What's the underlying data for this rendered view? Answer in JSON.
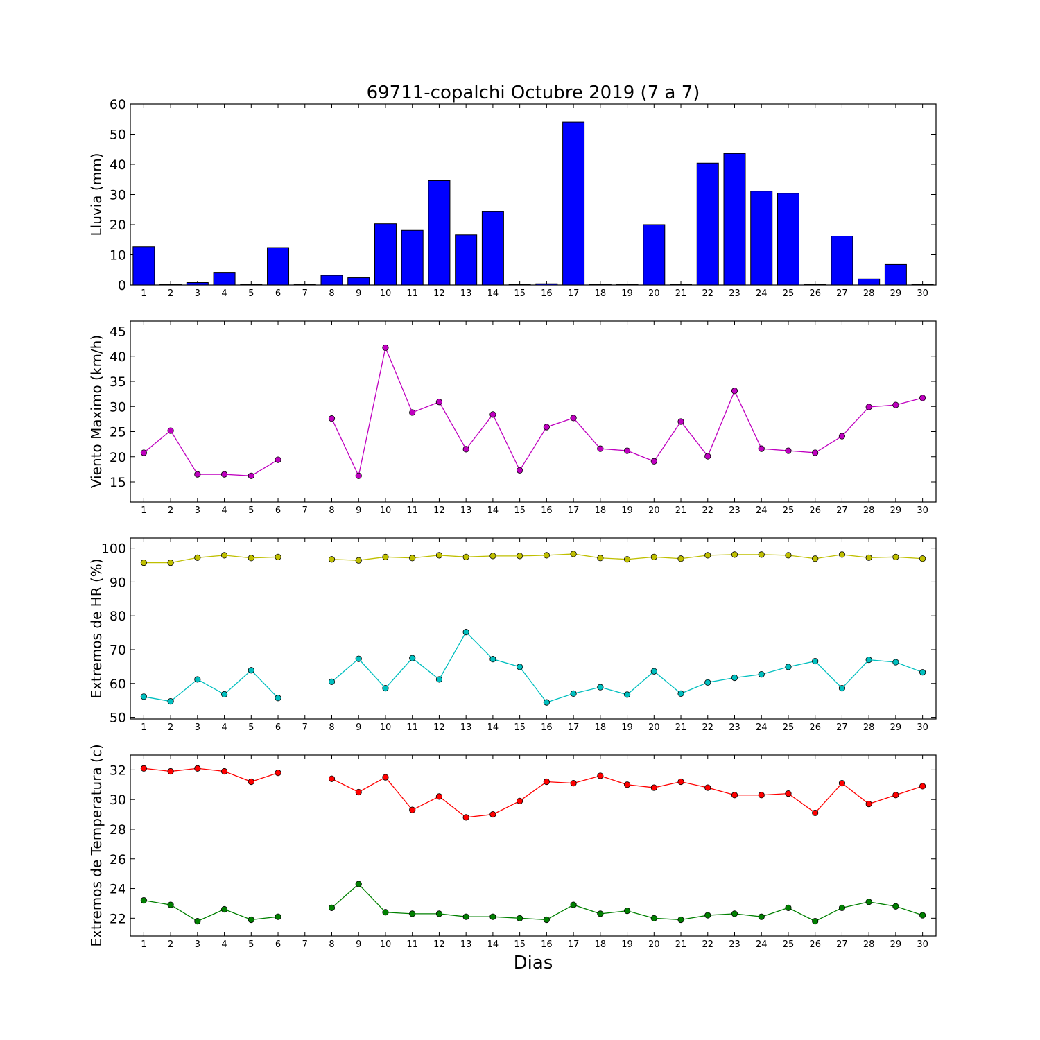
{
  "title": "69711-copalchi Octubre 2019  (7 a 7)",
  "xlabel": "Dias",
  "days": [
    1,
    2,
    3,
    4,
    5,
    6,
    7,
    8,
    9,
    10,
    11,
    12,
    13,
    14,
    15,
    16,
    17,
    18,
    19,
    20,
    21,
    22,
    23,
    24,
    25,
    26,
    27,
    28,
    29,
    30
  ],
  "chart_data": [
    {
      "type": "bar",
      "ylabel": "Lluvia (mm)",
      "ylim": [
        0,
        60
      ],
      "yticks": [
        0,
        10,
        20,
        30,
        40,
        50,
        60
      ],
      "xlim": [
        0.5,
        30.5
      ],
      "categories": [
        1,
        2,
        3,
        4,
        5,
        6,
        7,
        8,
        9,
        10,
        11,
        12,
        13,
        14,
        15,
        16,
        17,
        18,
        19,
        20,
        21,
        22,
        23,
        24,
        25,
        26,
        27,
        28,
        29,
        30
      ],
      "values": [
        12.7,
        0,
        0.8,
        4.0,
        0,
        12.4,
        0,
        3.2,
        2.4,
        20.3,
        18.1,
        34.6,
        16.6,
        24.3,
        0,
        0.4,
        54.0,
        0,
        0.1,
        20.0,
        0,
        40.4,
        43.6,
        31.1,
        30.4,
        0,
        16.2,
        2.0,
        6.8,
        0
      ],
      "color": "#0000ff"
    },
    {
      "type": "line",
      "ylabel": "Viento Maximo (km/h)",
      "ylim": [
        11,
        47
      ],
      "yticks": [
        15,
        20,
        25,
        30,
        35,
        40,
        45
      ],
      "xlim": [
        0.5,
        30.5
      ],
      "x": [
        1,
        2,
        3,
        4,
        5,
        6,
        7,
        8,
        9,
        10,
        11,
        12,
        13,
        14,
        15,
        16,
        17,
        18,
        19,
        20,
        21,
        22,
        23,
        24,
        25,
        26,
        27,
        28,
        29,
        30
      ],
      "series": [
        {
          "color": "#bf00bf",
          "values": [
            20.8,
            25.2,
            16.5,
            16.5,
            16.2,
            19.4,
            null,
            27.6,
            16.2,
            41.7,
            28.8,
            30.9,
            21.5,
            28.4,
            17.3,
            25.9,
            27.7,
            21.6,
            21.2,
            19.1,
            27.0,
            20.1,
            33.1,
            21.6,
            21.2,
            20.8,
            24.1,
            29.9,
            30.3,
            31.7
          ]
        }
      ]
    },
    {
      "type": "line",
      "ylabel": "Extremos de HR (%)",
      "ylim": [
        49.5,
        103
      ],
      "yticks": [
        50,
        60,
        70,
        80,
        90,
        100
      ],
      "xlim": [
        0.5,
        30.5
      ],
      "x": [
        1,
        2,
        3,
        4,
        5,
        6,
        7,
        8,
        9,
        10,
        11,
        12,
        13,
        14,
        15,
        16,
        17,
        18,
        19,
        20,
        21,
        22,
        23,
        24,
        25,
        26,
        27,
        28,
        29,
        30
      ],
      "series": [
        {
          "color": "#bfbf00",
          "values": [
            95.7,
            95.7,
            97.2,
            97.9,
            97.1,
            97.4,
            null,
            96.7,
            96.4,
            97.4,
            97.1,
            97.9,
            97.4,
            97.7,
            97.7,
            97.9,
            98.3,
            97.1,
            96.7,
            97.4,
            96.9,
            97.9,
            98.1,
            98.1,
            97.9,
            96.9,
            98.1,
            97.2,
            97.4,
            96.9
          ]
        },
        {
          "color": "#00bfbf",
          "values": [
            56.1,
            54.7,
            61.2,
            56.8,
            63.9,
            55.7,
            null,
            60.5,
            67.3,
            58.6,
            67.5,
            61.2,
            75.2,
            67.2,
            64.9,
            54.4,
            57.0,
            58.9,
            56.7,
            63.6,
            57.0,
            60.3,
            61.7,
            62.7,
            64.9,
            66.6,
            58.6,
            67.0,
            66.3,
            63.3
          ]
        }
      ]
    },
    {
      "type": "line",
      "ylabel": "Extremos de Temperatura (c)",
      "ylim": [
        20.8,
        33.0
      ],
      "yticks": [
        22,
        24,
        26,
        28,
        30,
        32
      ],
      "xlim": [
        0.5,
        30.5
      ],
      "x": [
        1,
        2,
        3,
        4,
        5,
        6,
        7,
        8,
        9,
        10,
        11,
        12,
        13,
        14,
        15,
        16,
        17,
        18,
        19,
        20,
        21,
        22,
        23,
        24,
        25,
        26,
        27,
        28,
        29,
        30
      ],
      "series": [
        {
          "color": "#ff0000",
          "values": [
            32.1,
            31.9,
            32.1,
            31.9,
            31.2,
            31.8,
            null,
            31.4,
            30.5,
            31.5,
            29.3,
            30.2,
            28.8,
            29.0,
            29.9,
            31.2,
            31.1,
            31.6,
            31.0,
            30.8,
            31.2,
            30.8,
            30.3,
            30.3,
            30.4,
            29.1,
            31.1,
            29.7,
            30.3,
            30.9
          ]
        },
        {
          "color": "#008000",
          "values": [
            23.2,
            22.9,
            21.8,
            22.6,
            21.9,
            22.1,
            null,
            22.7,
            24.3,
            22.4,
            22.3,
            22.3,
            22.1,
            22.1,
            22.0,
            21.9,
            22.9,
            22.3,
            22.5,
            22.0,
            21.9,
            22.2,
            22.3,
            22.1,
            22.7,
            21.8,
            22.7,
            23.1,
            22.8,
            22.2
          ]
        }
      ]
    }
  ]
}
